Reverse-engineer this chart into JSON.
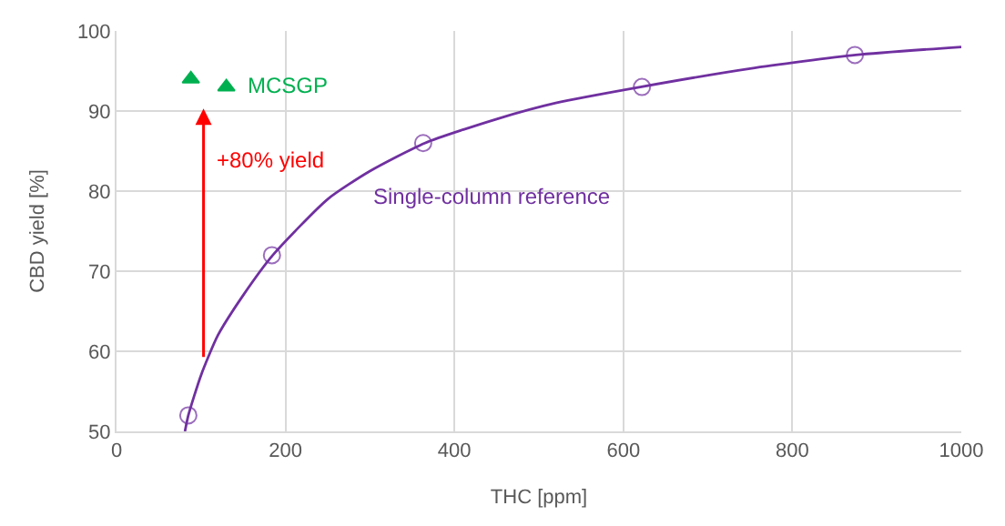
{
  "chart_data": {
    "type": "scatter",
    "xlabel": "THC [ppm]",
    "ylabel": "CBD yield [%]",
    "xlim": [
      0,
      1000
    ],
    "xticks": [
      0,
      200,
      400,
      600,
      800,
      1000
    ],
    "ylim": [
      50,
      100
    ],
    "yticks": [
      50,
      60,
      70,
      80,
      90,
      100
    ],
    "grid": true,
    "legend": false,
    "series": [
      {
        "type": "line",
        "color": "#7030a0",
        "marker": "none",
        "x": [
          81,
          85,
          100,
          120,
          150,
          185,
          250,
          300,
          365,
          450,
          520,
          620,
          750,
          875,
          1000
        ],
        "values": [
          50,
          52,
          57,
          62,
          67,
          72,
          79,
          82.5,
          86,
          89,
          91,
          93,
          95.3,
          97,
          98
        ]
      },
      {
        "name": "Single-column reference",
        "color": "#7030a0",
        "marker": "circle",
        "x": [
          85,
          184,
          363,
          622,
          874
        ],
        "values": [
          52,
          72,
          86,
          93,
          97
        ]
      },
      {
        "name": "MCSGP",
        "color": "#00b050",
        "marker": "triangle",
        "x": [
          88,
          130
        ],
        "values": [
          94,
          93
        ]
      }
    ],
    "annotations": [
      "+80% yield"
    ]
  }
}
